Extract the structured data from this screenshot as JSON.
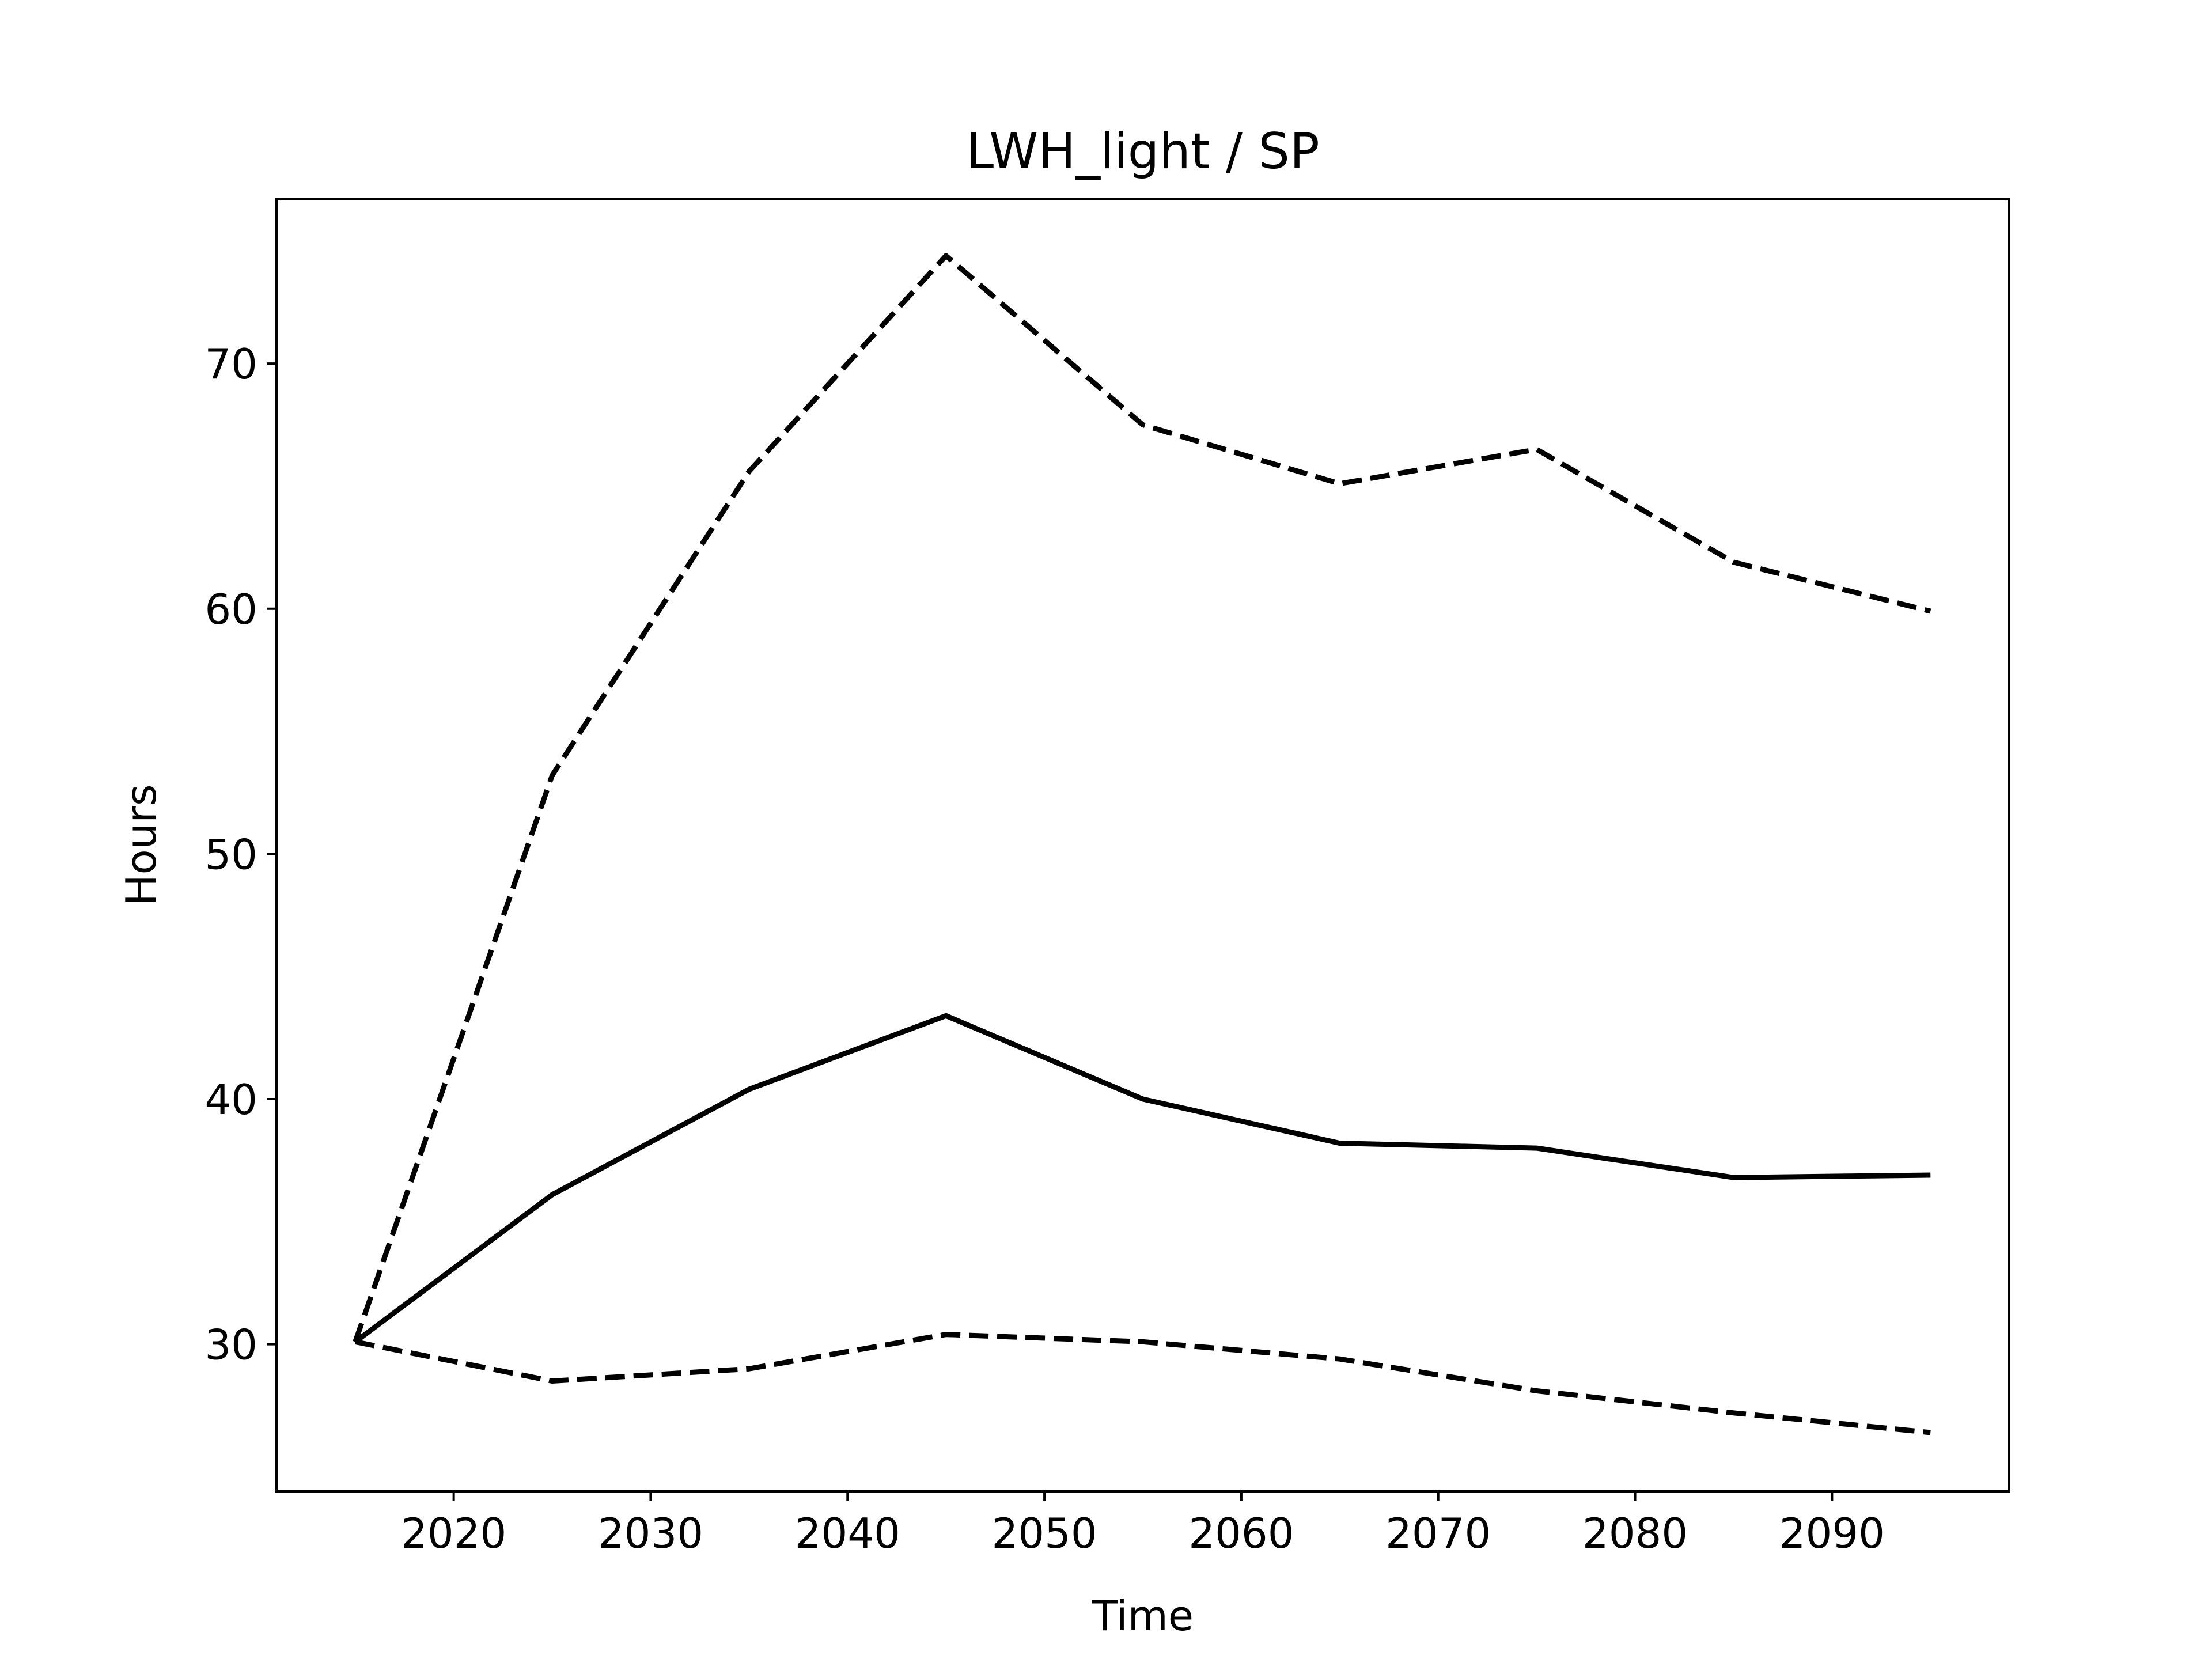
{
  "chart_data": {
    "type": "line",
    "title": "LWH_light / SP",
    "xlabel": "Time",
    "ylabel": "Hours",
    "xlim": [
      2011,
      2099
    ],
    "ylim": [
      24,
      76.7
    ],
    "xticks": [
      2020,
      2030,
      2040,
      2050,
      2060,
      2070,
      2080,
      2090
    ],
    "yticks": [
      30,
      40,
      50,
      60,
      70
    ],
    "grid": false,
    "x": [
      2015,
      2025,
      2035,
      2045,
      2055,
      2065,
      2075,
      2085,
      2095
    ],
    "series": [
      {
        "values": [
          30.1,
          36.1,
          40.4,
          43.4,
          40.0,
          38.2,
          38.0,
          36.8,
          36.9
        ],
        "style": "solid",
        "color": "#000000"
      },
      {
        "values": [
          30.1,
          53.2,
          65.6,
          74.4,
          67.5,
          65.1,
          66.5,
          61.9,
          59.9
        ],
        "style": "dashed",
        "color": "#000000"
      },
      {
        "values": [
          30.1,
          28.5,
          29.0,
          30.4,
          30.1,
          29.4,
          28.1,
          27.2,
          26.4
        ],
        "style": "dashed",
        "color": "#000000"
      }
    ]
  }
}
